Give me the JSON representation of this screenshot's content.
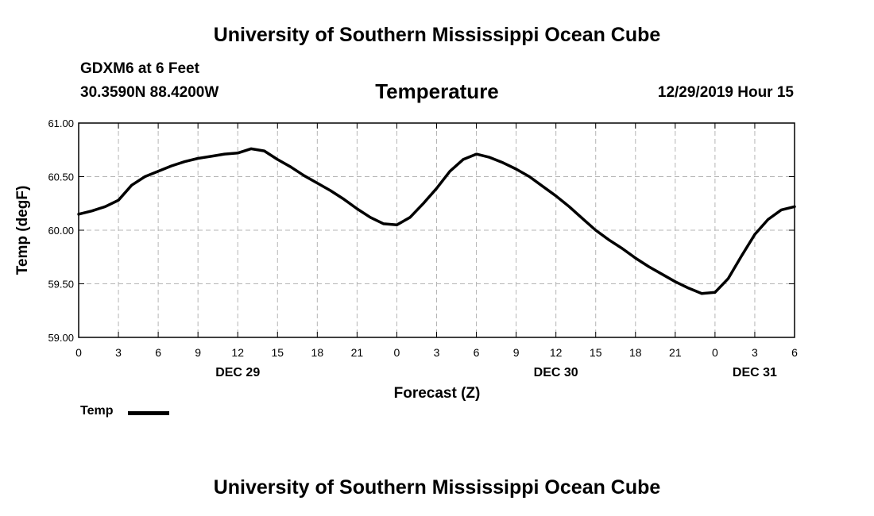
{
  "header": {
    "banner": "University of Southern Mississippi Ocean Cube",
    "station": "GDXM6 at 6 Feet",
    "coordinates": "30.3590N 88.4200W",
    "datetime": "12/29/2019 Hour 15"
  },
  "footer": {
    "banner": "University of Southern Mississippi Ocean Cube"
  },
  "chart_data": {
    "type": "line",
    "title": "Temperature",
    "xlabel": "Forecast (Z)",
    "ylabel": "Temp (degF)",
    "x_unit": "hours since Dec 29 00Z",
    "xlim": [
      0,
      54
    ],
    "ylim": [
      59.0,
      61.0
    ],
    "grid": true,
    "x_ticks": [
      {
        "x": 0,
        "label": "0"
      },
      {
        "x": 3,
        "label": "3"
      },
      {
        "x": 6,
        "label": "6"
      },
      {
        "x": 9,
        "label": "9"
      },
      {
        "x": 12,
        "label": "12"
      },
      {
        "x": 15,
        "label": "15"
      },
      {
        "x": 18,
        "label": "18"
      },
      {
        "x": 21,
        "label": "21"
      },
      {
        "x": 24,
        "label": "0"
      },
      {
        "x": 27,
        "label": "3"
      },
      {
        "x": 30,
        "label": "6"
      },
      {
        "x": 33,
        "label": "9"
      },
      {
        "x": 36,
        "label": "12"
      },
      {
        "x": 39,
        "label": "15"
      },
      {
        "x": 42,
        "label": "18"
      },
      {
        "x": 45,
        "label": "21"
      },
      {
        "x": 48,
        "label": "0"
      },
      {
        "x": 51,
        "label": "3"
      },
      {
        "x": 54,
        "label": "6"
      }
    ],
    "y_ticks": [
      {
        "y": 59.0,
        "label": "59.00"
      },
      {
        "y": 59.5,
        "label": "59.50"
      },
      {
        "y": 60.0,
        "label": "60.00"
      },
      {
        "y": 60.5,
        "label": "60.50"
      },
      {
        "y": 61.0,
        "label": "61.00"
      }
    ],
    "day_labels": [
      {
        "x": 12,
        "label": "DEC 29"
      },
      {
        "x": 36,
        "label": "DEC 30"
      },
      {
        "x": 51,
        "label": "DEC 31"
      }
    ],
    "legend": {
      "position": "bottom-left",
      "entries": [
        "Temp"
      ]
    },
    "series": [
      {
        "name": "Temp",
        "color": "#000000",
        "x": [
          0,
          1,
          2,
          3,
          4,
          5,
          6,
          7,
          8,
          9,
          10,
          11,
          12,
          13,
          14,
          15,
          16,
          17,
          18,
          19,
          20,
          21,
          22,
          23,
          24,
          25,
          26,
          27,
          28,
          29,
          30,
          31,
          32,
          33,
          34,
          35,
          36,
          37,
          38,
          39,
          40,
          41,
          42,
          43,
          44,
          45,
          46,
          47,
          48,
          49,
          50,
          51,
          52,
          53,
          54
        ],
        "values": [
          60.15,
          60.18,
          60.22,
          60.28,
          60.42,
          60.5,
          60.55,
          60.6,
          60.64,
          60.67,
          60.69,
          60.71,
          60.72,
          60.76,
          60.74,
          60.66,
          60.59,
          60.51,
          60.44,
          60.37,
          60.29,
          60.2,
          60.12,
          60.06,
          60.05,
          60.12,
          60.25,
          60.39,
          60.55,
          60.66,
          60.71,
          60.68,
          60.63,
          60.57,
          60.5,
          60.41,
          60.32,
          60.22,
          60.11,
          60.0,
          59.91,
          59.83,
          59.74,
          59.66,
          59.59,
          59.52,
          59.46,
          59.41,
          59.42,
          59.55,
          59.76,
          59.96,
          60.1,
          60.19,
          60.22
        ]
      }
    ]
  }
}
